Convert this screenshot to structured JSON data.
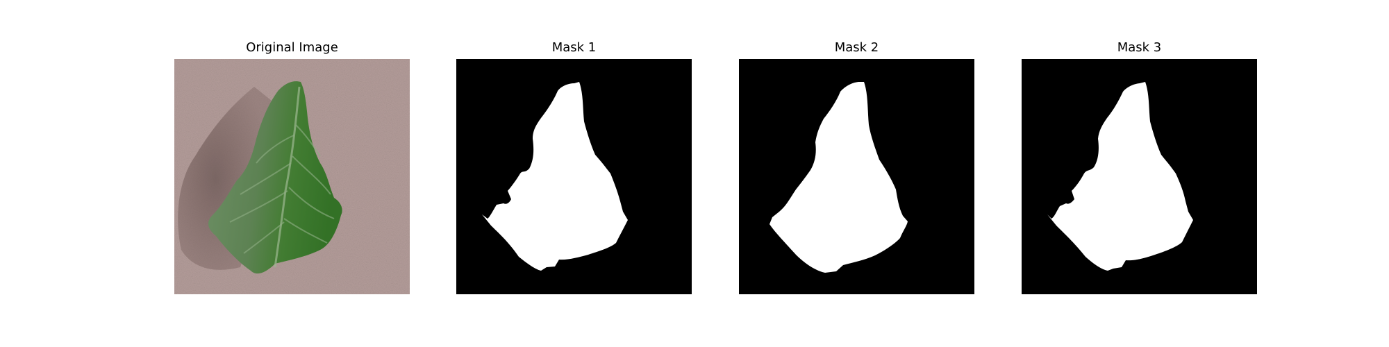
{
  "panels": [
    {
      "title": "Original Image",
      "kind": "photo",
      "subject": "leaf-photo"
    },
    {
      "title": "Mask 1",
      "kind": "mask",
      "variant": 1
    },
    {
      "title": "Mask 2",
      "kind": "mask",
      "variant": 2
    },
    {
      "title": "Mask 3",
      "kind": "mask",
      "variant": 3
    }
  ],
  "colors": {
    "mask_background": "#000000",
    "mask_foreground": "#ffffff",
    "surface": "#b39b98",
    "shadow": "#6b5754",
    "leaf_dark": "#3f6a3a",
    "leaf_mid": "#587f52",
    "leaf_light": "#6f9a66",
    "leaf_bright": "#2f7a28"
  }
}
